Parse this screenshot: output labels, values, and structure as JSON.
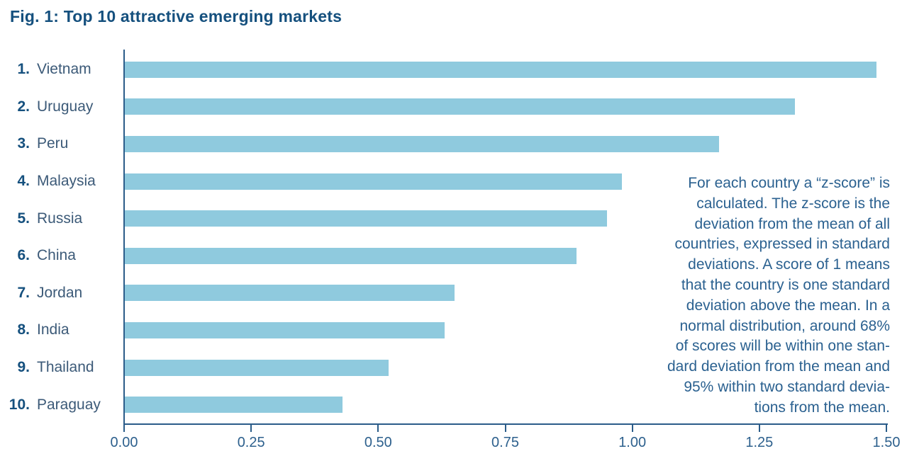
{
  "colors": {
    "navy": "#15507E",
    "name": "#3C5A78",
    "bar": "#8FCADE",
    "axis": "#2B5C89",
    "tick": "#2D608D",
    "annotation": "#2B6190"
  },
  "chart_data": {
    "type": "bar",
    "orientation": "horizontal",
    "title": "Fig. 1: Top 10 attractive emerging markets",
    "ranks": [
      "1.",
      "2.",
      "3.",
      "4.",
      "5.",
      "6.",
      "7.",
      "8.",
      "9.",
      "10."
    ],
    "categories": [
      "Vietnam",
      "Uruguay",
      "Peru",
      "Malaysia",
      "Russia",
      "China",
      "Jordan",
      "India",
      "Thailand",
      "Paraguay"
    ],
    "values": [
      1.48,
      1.32,
      1.17,
      0.98,
      0.95,
      0.89,
      0.65,
      0.63,
      0.52,
      0.43
    ],
    "xlabel": "",
    "ylabel": "",
    "xlim": [
      0,
      1.5
    ],
    "x_ticks": [
      "0.00",
      "0.25",
      "0.50",
      "0.75",
      "1.00",
      "1.25",
      "1.50"
    ],
    "grid": false,
    "legend": "none",
    "annotation": "For each country a “z-score” is\ncalculated. The z-score is the\ndeviation from the mean of all\ncountries, expressed in standard\ndeviations. A score of 1 means\nthat the country is one standard\ndeviation above the mean. In a\nnormal distribution, around 68%\nof scores will be within one stan-\ndard deviation from the mean and\n95% within two standard devia-\ntions from the mean."
  }
}
